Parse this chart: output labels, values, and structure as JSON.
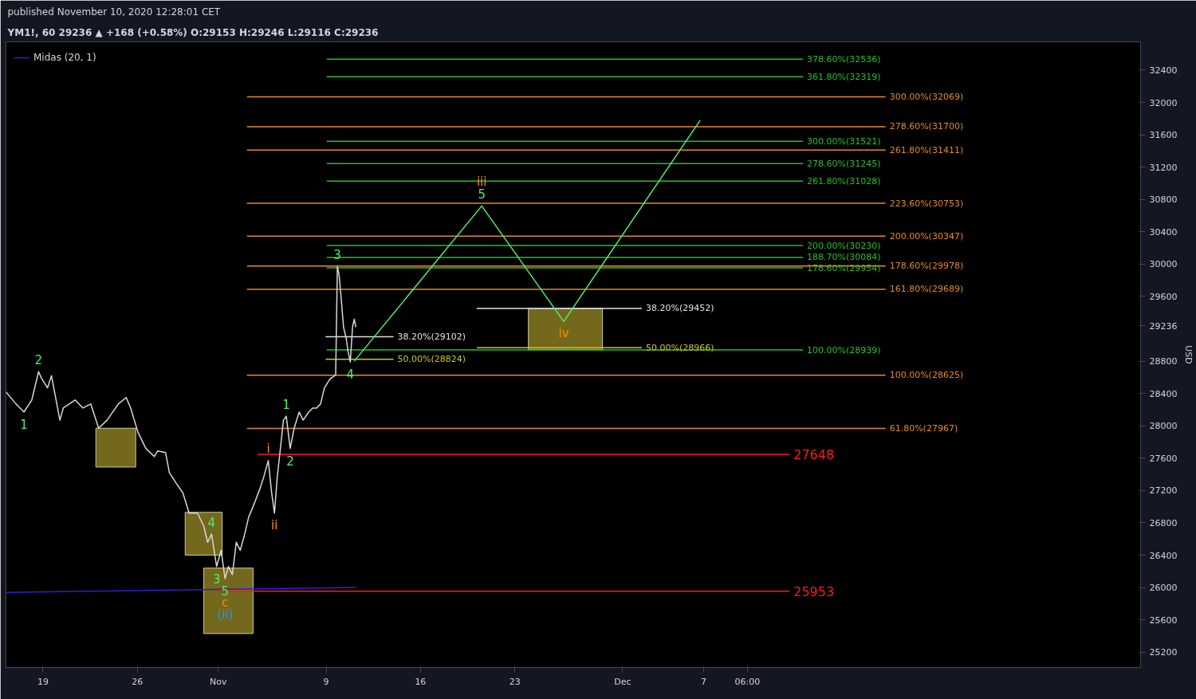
{
  "chart_data": {
    "type": "line",
    "title": "YM1!, 60  29236 ▲ +168 (+0.58%) O:29153 H:29246 L:29116 C:29236",
    "subtitle": "published November 10, 2020 12:28:01 CET",
    "ylabel": "USD",
    "xlim": [
      "2020-10-16T06:00",
      "2021-01-08T10:00"
    ],
    "ylim": [
      25010,
      32750
    ],
    "xticks": [
      {
        "value": "2020-10-19",
        "label": "19"
      },
      {
        "value": "2020-10-26",
        "label": "26"
      },
      {
        "value": "2020-11-01",
        "label": "Nov"
      },
      {
        "value": "2020-11-09",
        "label": "9"
      },
      {
        "value": "2020-11-16",
        "label": "16"
      },
      {
        "value": "2020-11-23",
        "label": "23"
      },
      {
        "value": "2020-12-01",
        "label": "Dec"
      },
      {
        "value": "2020-12-07",
        "label": "7"
      },
      {
        "value": "2020-12-10T06:00",
        "label": "06:00"
      }
    ],
    "yticks": [
      25200,
      25600,
      26000,
      26400,
      26800,
      27200,
      27600,
      28000,
      28400,
      28800,
      {
        "value": 29236,
        "label": "29236"
      },
      29600,
      30000,
      30400,
      30800,
      31200,
      31600,
      32000,
      32400
    ],
    "grid": false,
    "legend": "top left",
    "series": [
      {
        "color": "#7a6e1e",
        "x": [
          "2020-10-22T22:00",
          "2020-10-25T21:00"
        ],
        "values": [
          null,
          null
        ],
        "upper": [
          27970,
          27970
        ],
        "lower": [
          27490,
          27490
        ]
      },
      {
        "color": "#7a6e1e",
        "x": [
          "2020-10-29T13:00",
          "2020-11-01T07:00"
        ],
        "values": [
          null,
          null
        ],
        "upper": [
          26930,
          26930
        ],
        "lower": [
          26400,
          26400
        ]
      },
      {
        "color": "#7a6e1e",
        "x": [
          "2020-10-30T22:00",
          "2020-11-03T14:00"
        ],
        "values": [
          null,
          null
        ],
        "upper": [
          26240,
          26240
        ],
        "lower": [
          25430,
          25430
        ]
      },
      {
        "color": "#7a6e1e",
        "x": [
          "2020-11-24T00:00",
          "2020-11-29T12:00"
        ],
        "values": [
          null,
          null
        ],
        "upper": [
          29452,
          29452
        ],
        "lower": [
          28940,
          28940
        ]
      },
      {
        "name": "300.00%(32069)",
        "color": "#e8891c",
        "x": [
          "2020-11-03T03:00",
          "2020-12-20T12:00"
        ],
        "values": [
          32069,
          32069
        ]
      },
      {
        "name": "278.60%(31700)",
        "color": "#e8891c",
        "x": [
          "2020-11-03T03:00",
          "2020-12-20T12:00"
        ],
        "values": [
          31700,
          31700
        ]
      },
      {
        "name": "261.80%(31411)",
        "color": "#e8891c",
        "x": [
          "2020-11-03T03:00",
          "2020-12-20T12:00"
        ],
        "values": [
          31411,
          31411
        ]
      },
      {
        "name": "223.60%(30753)",
        "color": "#e8891c",
        "x": [
          "2020-11-03T03:00",
          "2020-12-20T12:00"
        ],
        "values": [
          30753,
          30753
        ]
      },
      {
        "name": "200.00%(30347)",
        "color": "#e8891c",
        "x": [
          "2020-11-03T03:00",
          "2020-12-20T12:00"
        ],
        "values": [
          30347,
          30347
        ]
      },
      {
        "name": "178.60%(29978)",
        "color": "#e8891c",
        "x": [
          "2020-11-03T03:00",
          "2020-12-20T12:00"
        ],
        "values": [
          29978,
          29978
        ]
      },
      {
        "name": "161.80%(29689)",
        "color": "#e8891c",
        "x": [
          "2020-11-03T03:00",
          "2020-12-20T12:00"
        ],
        "values": [
          29689,
          29689
        ]
      },
      {
        "name": "100.00%(28625)",
        "color": "#e8891c",
        "x": [
          "2020-11-03T03:00",
          "2020-12-20T12:00"
        ],
        "values": [
          28625,
          28625
        ]
      },
      {
        "name": "61.80%(27967)",
        "color": "#e8891c",
        "x": [
          "2020-11-03T03:00",
          "2020-12-20T12:00"
        ],
        "values": [
          27967,
          27967
        ]
      },
      {
        "name": "378.60%(32536)",
        "color": "#22c02a",
        "x": [
          "2020-11-09T01:00",
          "2020-12-14T09:00"
        ],
        "values": [
          32536,
          32536
        ]
      },
      {
        "name": "361.80%(32319)",
        "color": "#22c02a",
        "x": [
          "2020-11-09T01:00",
          "2020-12-14T09:00"
        ],
        "values": [
          32319,
          32319
        ]
      },
      {
        "name": "300.00%(31521)",
        "color": "#22c02a",
        "x": [
          "2020-11-09T01:00",
          "2020-12-14T09:00"
        ],
        "values": [
          31521,
          31521
        ]
      },
      {
        "name": "278.60%(31245)",
        "color": "#22c02a",
        "x": [
          "2020-11-09T01:00",
          "2020-12-14T09:00"
        ],
        "values": [
          31245,
          31245
        ]
      },
      {
        "name": "261.80%(31028)",
        "color": "#22c02a",
        "x": [
          "2020-11-09T01:00",
          "2020-12-14T09:00"
        ],
        "values": [
          31028,
          31028
        ]
      },
      {
        "name": "200.00%(30230)",
        "color": "#22c02a",
        "x": [
          "2020-11-09T01:00",
          "2020-12-14T09:00"
        ],
        "values": [
          30230,
          30230
        ]
      },
      {
        "name": "188.70%(30084)",
        "color": "#22c02a",
        "x": [
          "2020-11-09T01:00",
          "2020-12-14T09:00"
        ],
        "values": [
          30084,
          30084
        ]
      },
      {
        "name": "178.60%(29954)",
        "color": "#22c02a",
        "x": [
          "2020-11-09T01:00",
          "2020-12-14T09:00"
        ],
        "values": [
          29954,
          29954
        ]
      },
      {
        "name": "100.00%(28939)",
        "color": "#22c02a",
        "x": [
          "2020-11-09T01:00",
          "2020-12-14T09:00"
        ],
        "values": [
          28939,
          28939
        ]
      },
      {
        "name": "38.20%(29102)",
        "color": "#e0e0e0",
        "x": [
          "2020-11-08T23:00",
          "2020-11-14T00:00"
        ],
        "values": [
          29102,
          29102
        ]
      },
      {
        "name": "38.20%(29452)",
        "color": "#e0e0e0",
        "x": [
          "2020-11-20T04:00",
          "2020-12-02T10:00"
        ],
        "values": [
          29452,
          29452
        ]
      },
      {
        "name": "50.00%(28824)",
        "color": "#c8c81e",
        "x": [
          "2020-11-08T23:00",
          "2020-11-14T00:00"
        ],
        "values": [
          28824,
          28824
        ]
      },
      {
        "name": "50.00%(28966)",
        "color": "#c8c81e",
        "x": [
          "2020-11-20T04:00",
          "2020-12-02T10:00"
        ],
        "values": [
          28966,
          28966
        ]
      },
      {
        "name": "27648",
        "color": "#ff1a1a",
        "x": [
          "2020-11-03T22:00",
          "2020-12-13T09:00"
        ],
        "values": [
          27648,
          27648
        ]
      },
      {
        "name": "25953",
        "color": "#ff1a1a",
        "x": [
          "2020-10-31T21:00",
          "2020-12-13T09:00"
        ],
        "values": [
          25953,
          25953
        ]
      },
      {
        "name": "Midas (20, 1)",
        "color": "#2a1fd6",
        "x": [
          "2020-10-16T06:00",
          "2020-11-11T05:00"
        ],
        "values": [
          25940,
          26000
        ]
      },
      {
        "color": "#d8d8d8",
        "x": [
          "2020-10-16T06:00",
          "2020-10-17T00:00",
          "2020-10-17T14:00",
          "2020-10-18T04:00",
          "2020-10-18T16:00",
          "2020-10-18T21:00",
          "2020-10-19T08:00",
          "2020-10-19T15:00",
          "2020-10-20T06:00",
          "2020-10-20T12:00",
          "2020-10-21T09:00",
          "2020-10-21T23:00",
          "2020-10-22T13:00",
          "2020-10-23T03:00",
          "2020-10-23T18:00",
          "2020-10-24T14:00",
          "2020-10-25T04:00",
          "2020-10-25T12:00",
          "2020-10-26T01:00",
          "2020-10-26T15:00",
          "2020-10-27T06:00",
          "2020-10-27T12:00",
          "2020-10-28T02:00",
          "2020-10-28T09:00",
          "2020-10-28T23:00",
          "2020-10-29T09:00",
          "2020-10-29T20:00",
          "2020-10-30T11:00",
          "2020-10-30T22:00",
          "2020-10-31T05:00",
          "2020-10-31T12:00",
          "2020-10-31T21:00",
          "2020-11-01T05:00",
          "2020-11-01T12:00",
          "2020-11-01T18:00",
          "2020-11-02T01:00",
          "2020-11-02T08:00",
          "2020-11-02T15:00",
          "2020-11-02T23:00",
          "2020-11-03T06:00",
          "2020-11-03T15:00",
          "2020-11-04T02:00",
          "2020-11-04T09:00",
          "2020-11-04T17:00",
          "2020-11-04T23:00",
          "2020-11-05T04:00",
          "2020-11-05T09:00",
          "2020-11-05T13:00",
          "2020-11-05T20:00",
          "2020-11-06T01:00",
          "2020-11-06T08:00",
          "2020-11-06T15:00",
          "2020-11-07T00:00",
          "2020-11-07T07:00",
          "2020-11-07T17:00",
          "2020-11-08T00:00",
          "2020-11-08T07:00",
          "2020-11-08T14:00",
          "2020-11-08T21:00",
          "2020-11-09T06:00",
          "2020-11-09T11:00",
          "2020-11-09T17:00",
          "2020-11-09T20:00",
          "2020-11-09T23:00",
          "2020-11-10T01:00",
          "2020-11-10T04:00",
          "2020-11-10T07:00",
          "2020-11-10T12:00",
          "2020-11-10T15:00",
          "2020-11-10T19:00",
          "2020-11-10T23:00",
          "2020-11-11T02:00",
          "2020-11-11T05:00"
        ],
        "values": [
          28420,
          28270,
          28170,
          28320,
          28670,
          28590,
          28470,
          28620,
          28070,
          28220,
          28320,
          28220,
          28270,
          27970,
          28070,
          28270,
          28350,
          28220,
          27920,
          27720,
          27620,
          27690,
          27670,
          27420,
          27270,
          27170,
          26920,
          26920,
          26760,
          26560,
          26660,
          26260,
          26460,
          26110,
          26260,
          26160,
          26560,
          26460,
          26660,
          26870,
          27020,
          27220,
          27370,
          27570,
          27170,
          26920,
          27370,
          27620,
          28070,
          28120,
          27720,
          27970,
          28170,
          28070,
          28170,
          28220,
          28220,
          28270,
          28470,
          28570,
          28600,
          28630,
          29970,
          29870,
          29720,
          29470,
          29220,
          29070,
          28920,
          28790,
          29220,
          29320,
          29220
        ]
      },
      {
        "color": "#4cef6e",
        "x": [
          "2020-11-11T02:00",
          "2020-11-20T13:00",
          "2020-11-26T15:00",
          "2020-12-06T18:00"
        ],
        "values": [
          28800,
          30720,
          29290,
          31780
        ]
      }
    ],
    "annotations": [
      {
        "text": "1",
        "x": "2020-10-17T14:00",
        "y": 28170
      },
      {
        "text": "2",
        "x": "2020-10-18T16:00",
        "y": 28670
      },
      {
        "text": "4",
        "x": "2020-10-31T12:00",
        "y": 26660
      },
      {
        "text": "3",
        "x": "2020-10-31T21:00",
        "y": 26260
      },
      {
        "text": "5",
        "x": "2020-11-01T12:00",
        "y": 26110
      },
      {
        "text": "c",
        "x": "2020-11-01T12:00",
        "y": 26110
      },
      {
        "text": "(ii)",
        "x": "2020-11-01T12:00",
        "y": 26110
      },
      {
        "text": "i",
        "x": "2020-11-04T17:00",
        "y": 27570
      },
      {
        "text": "ii",
        "x": "2020-11-05T04:00",
        "y": 26920
      },
      {
        "text": "1",
        "x": "2020-11-06T01:00",
        "y": 28120
      },
      {
        "text": "2",
        "x": "2020-11-06T08:00",
        "y": 27720
      },
      {
        "text": "3",
        "x": "2020-11-09T20:00",
        "y": 29970
      },
      {
        "text": "4",
        "x": "2020-11-10T19:00",
        "y": 28790
      },
      {
        "text": "5",
        "x": "2020-11-20T13:00",
        "y": 30720
      },
      {
        "text": "iii",
        "x": "2020-11-20T13:00",
        "y": 30720
      },
      {
        "text": "iv",
        "x": "2020-11-26T15:00",
        "y": 29290
      }
    ]
  }
}
